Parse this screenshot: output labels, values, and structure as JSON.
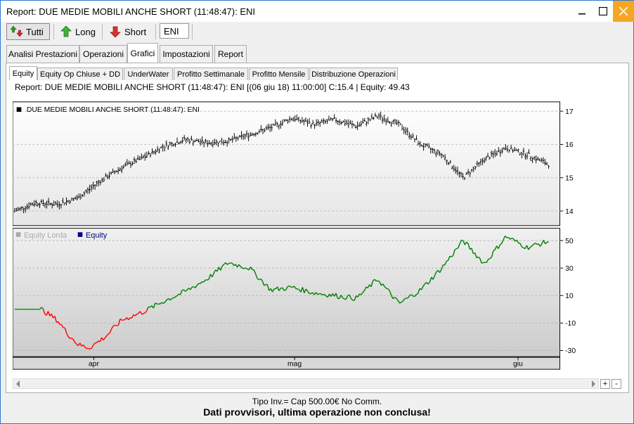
{
  "window": {
    "title": "Report: DUE MEDIE MOBILI ANCHE SHORT (11:48:47): ENI"
  },
  "toolbar": {
    "tutti_label": "Tutti",
    "long_label": "Long",
    "short_label": "Short",
    "ticker_value": "ENI"
  },
  "tabs": [
    {
      "label": "Analisi Prestazioni"
    },
    {
      "label": "Operazioni"
    },
    {
      "label": "Grafici"
    },
    {
      "label": "Impostazioni"
    },
    {
      "label": "Report"
    }
  ],
  "subtabs": [
    {
      "label": "Equity"
    },
    {
      "label": "Equity Op Chiuse + DD"
    },
    {
      "label": "UnderWater"
    },
    {
      "label": "Profitto Settimanale"
    },
    {
      "label": "Profitto Mensile"
    },
    {
      "label": "Distribuzione Operazioni"
    }
  ],
  "chart_header": "Report: DUE MEDIE MOBILI ANCHE SHORT (11:48:47): ENI  [(06 giu 18) 11:00:00]  C:15.4   |   Equity: 49.43",
  "status": {
    "line1": "Tipo Inv.= Cap 500.00€ No Comm.",
    "line2": "Dati provvisori, ultima operazione non conclusa!"
  },
  "colors": {
    "equity_negative": "#ff0000",
    "equity_positive": "#008000",
    "equity_flat": "#009000",
    "legend_equity": "#000080",
    "legend_lorda": "#aaaaaa",
    "accent": "#2b79d0",
    "close_button": "#f5a623"
  },
  "chart_data": [
    {
      "type": "ohlc",
      "legend": "DUE MEDIE MOBILI ANCHE SHORT (11:48:47): ENI",
      "ylim": [
        13.6,
        17.2
      ],
      "yticks": [
        14,
        15,
        16,
        17
      ],
      "x_points": [
        0,
        4,
        8,
        12,
        16,
        20,
        24,
        28,
        32,
        36,
        40,
        44,
        48,
        52,
        56,
        60,
        64,
        68,
        72,
        76,
        80,
        84,
        88,
        92,
        96,
        100
      ],
      "close_values": [
        14.0,
        14.25,
        14.2,
        14.4,
        14.9,
        15.3,
        15.6,
        15.95,
        16.15,
        16.05,
        16.1,
        16.3,
        16.5,
        16.8,
        16.6,
        16.75,
        16.55,
        16.85,
        16.6,
        16.0,
        15.7,
        15.0,
        15.55,
        15.9,
        15.7,
        15.4
      ],
      "x_ticks": [
        "apr",
        "mag",
        "giu"
      ]
    },
    {
      "type": "line",
      "series": [
        {
          "name": "Equity Lorda",
          "values": []
        },
        {
          "name": "Equity",
          "x": [
            0,
            5,
            8,
            10,
            12,
            14,
            17,
            20,
            24,
            28,
            32,
            36,
            40,
            44,
            48,
            52,
            56,
            60,
            64,
            68,
            72,
            76,
            80,
            84,
            88,
            92,
            96,
            100
          ],
          "values": [
            0,
            0,
            -8,
            -18,
            -26,
            -28,
            -20,
            -8,
            -2,
            6,
            13,
            22,
            34,
            30,
            14,
            16,
            12,
            10,
            8,
            22,
            4,
            14,
            30,
            50,
            33,
            53,
            45,
            49.43
          ]
        }
      ],
      "ylim": [
        -34,
        58
      ],
      "yticks": [
        -30,
        -10,
        10,
        30,
        50
      ]
    }
  ]
}
